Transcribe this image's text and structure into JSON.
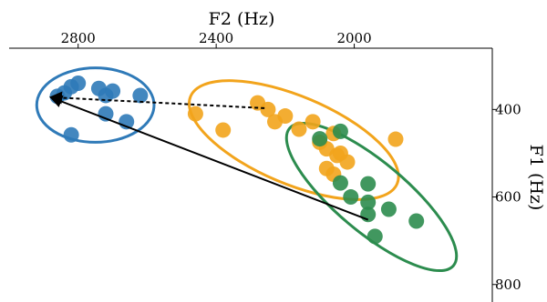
{
  "chart_data": {
    "type": "scatter",
    "title": "",
    "xlabel": "F2 (Hz)",
    "ylabel": "F1 (Hz)",
    "xlim": [
      3000,
      1600
    ],
    "ylim": [
      260,
      840
    ],
    "x_reversed": true,
    "y_reversed": true,
    "xaxis_position": "top",
    "yaxis_position": "right",
    "xticks": [
      2800,
      2400,
      2000
    ],
    "yticks": [
      400,
      600,
      800
    ],
    "grid": false,
    "legend": "none",
    "series": [
      {
        "color": "#2f7ab8",
        "points": [
          [
            2860,
            370
          ],
          [
            2840,
            362
          ],
          [
            2820,
            348
          ],
          [
            2800,
            340
          ],
          [
            2740,
            352
          ],
          [
            2720,
            368
          ],
          [
            2700,
            358
          ],
          [
            2620,
            368
          ],
          [
            2720,
            410
          ],
          [
            2660,
            428
          ],
          [
            2820,
            458
          ]
        ]
      },
      {
        "color": "#f2a41c",
        "points": [
          [
            2460,
            410
          ],
          [
            2380,
            447
          ],
          [
            2280,
            385
          ],
          [
            2250,
            400
          ],
          [
            2230,
            428
          ],
          [
            2200,
            415
          ],
          [
            2160,
            445
          ],
          [
            2120,
            428
          ],
          [
            2060,
            455
          ],
          [
            2080,
            490
          ],
          [
            2050,
            505
          ],
          [
            2040,
            500
          ],
          [
            2100,
            475
          ],
          [
            2080,
            535
          ],
          [
            2060,
            548
          ],
          [
            2020,
            520
          ],
          [
            1880,
            468
          ]
        ]
      },
      {
        "color": "#2c8c4e",
        "points": [
          [
            2100,
            467
          ],
          [
            2040,
            450
          ],
          [
            1960,
            570
          ],
          [
            2040,
            568
          ],
          [
            2010,
            600
          ],
          [
            1960,
            612
          ],
          [
            1900,
            628
          ],
          [
            1960,
            640
          ],
          [
            1940,
            690
          ],
          [
            1820,
            655
          ]
        ]
      }
    ],
    "ellipses": [
      {
        "color": "#2f7ab8",
        "center": [
          2750,
          390
        ],
        "rx_hz": 170,
        "ry_hz": 85
      },
      {
        "color": "#f2a41c",
        "center": [
          2175,
          470
        ],
        "rx_hz": 325,
        "ry_hz": 100,
        "angle_deg": 23
      },
      {
        "color": "#2c8c4e",
        "center": [
          1950,
          600
        ],
        "rx_hz": 310,
        "ry_hz": 80,
        "angle_deg": 40
      }
    ],
    "arrows": [
      {
        "from": [
          2260,
          397
        ],
        "to": [
          2880,
          372
        ],
        "style": "dashed"
      },
      {
        "from": [
          1960,
          652
        ],
        "to": [
          2880,
          372
        ],
        "style": "solid"
      }
    ]
  }
}
